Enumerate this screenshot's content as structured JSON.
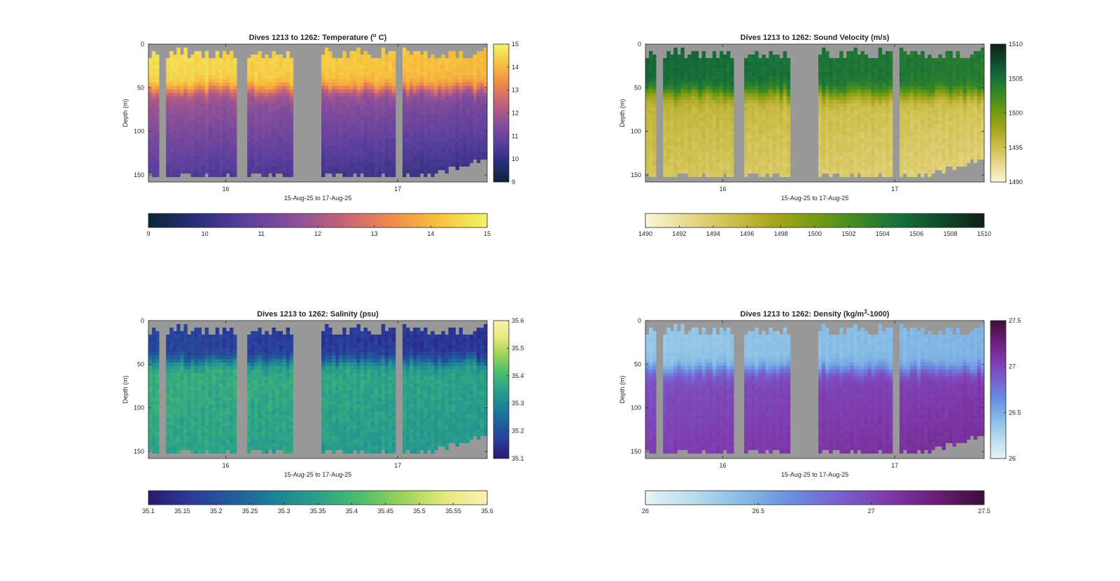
{
  "figure": {
    "background": "#ffffff",
    "nan_color": "#999999"
  },
  "chart_data": [
    {
      "id": "temperature",
      "type": "heatmap",
      "title": "Dives 1213 to 1262: Temperature (°C)",
      "title_prefix": "Dives 1213 to 1262: Temperature (",
      "title_sup": "o",
      "title_suffix": " C)",
      "xlabel": "15-Aug-25 to 17-Aug-25",
      "ylabel": "Depth (m)",
      "xlim": [
        15.55,
        17.52
      ],
      "ylim": [
        0,
        158
      ],
      "y_reversed": true,
      "xticks": [
        16,
        17
      ],
      "xtick_labels": [
        "16",
        "17"
      ],
      "yticks": [
        0,
        50,
        100,
        150
      ],
      "clim": [
        9,
        15
      ],
      "colorbar_ticks": [
        9,
        10,
        11,
        12,
        13,
        14,
        15
      ],
      "colorbar_tick_labels": [
        "9",
        "10",
        "11",
        "12",
        "13",
        "14",
        "15"
      ],
      "horizontal_colorbar_ticks": [
        9,
        10,
        11,
        12,
        13,
        14,
        15
      ],
      "horizontal_colorbar_tick_labels": [
        "9",
        "10",
        "11",
        "12",
        "13",
        "14",
        "15"
      ],
      "colormap": [
        "#0b2537",
        "#2a2e7a",
        "#5a3f9e",
        "#8a4f9a",
        "#c4627a",
        "#f08a4b",
        "#f7c23d",
        "#f1f46a"
      ],
      "profile": {
        "surface": 14.6,
        "mid": 11.8,
        "deep": 10.6,
        "thermocline": 50,
        "width": 12,
        "trend": -0.6
      },
      "noise": 0.25
    },
    {
      "id": "sound_velocity",
      "type": "heatmap",
      "title": "Dives 1213 to 1262: Sound Velocity (m/s)",
      "title_prefix": "Dives 1213 to 1262: Sound Velocity (m/s)",
      "title_sup": "",
      "title_suffix": "",
      "xlabel": "15-Aug-25 to 17-Aug-25",
      "ylabel": "Depth (m)",
      "xlim": [
        15.55,
        17.52
      ],
      "ylim": [
        0,
        158
      ],
      "y_reversed": true,
      "xticks": [
        16,
        17
      ],
      "xtick_labels": [
        "16",
        "17"
      ],
      "yticks": [
        0,
        50,
        100,
        150
      ],
      "clim": [
        1490,
        1510
      ],
      "colorbar_ticks": [
        1490,
        1495,
        1500,
        1505,
        1510
      ],
      "colorbar_tick_labels": [
        "1490",
        "1495",
        "1500",
        "1505",
        "1510"
      ],
      "horizontal_colorbar_ticks": [
        1490,
        1492,
        1494,
        1496,
        1498,
        1500,
        1502,
        1504,
        1506,
        1508,
        1510
      ],
      "horizontal_colorbar_tick_labels": [
        "1490",
        "1492",
        "1494",
        "1496",
        "1498",
        "1500",
        "1502",
        "1504",
        "1506",
        "1508",
        "1510"
      ],
      "colormap": [
        "#fbf7d6",
        "#e8d98d",
        "#cfc04f",
        "#a8a51f",
        "#779c12",
        "#3f8a24",
        "#16703a",
        "#0f4a2a",
        "#101f17"
      ],
      "profile": {
        "surface": 1505.5,
        "mid": 1496,
        "deep": 1494.5,
        "thermocline": 55,
        "width": 12,
        "trend": -1.5
      },
      "noise": 0.9
    },
    {
      "id": "salinity",
      "type": "heatmap",
      "title": "Dives 1213 to 1262: Salinity (psu)",
      "title_prefix": "Dives 1213 to 1262: Salinity (psu)",
      "title_sup": "",
      "title_suffix": "",
      "xlabel": "15-Aug-25 to 17-Aug-25",
      "ylabel": "Depth (m)",
      "xlim": [
        15.55,
        17.52
      ],
      "ylim": [
        0,
        158
      ],
      "y_reversed": true,
      "xticks": [
        16,
        17
      ],
      "xtick_labels": [
        "16",
        "17"
      ],
      "yticks": [
        0,
        50,
        100,
        150
      ],
      "clim": [
        35.1,
        35.6
      ],
      "colorbar_ticks": [
        35.1,
        35.2,
        35.3,
        35.4,
        35.5,
        35.6
      ],
      "colorbar_tick_labels": [
        "35.1",
        "35.2",
        "35.3",
        "35.4",
        "35.5",
        "35.6"
      ],
      "horizontal_colorbar_ticks": [
        35.1,
        35.15,
        35.2,
        35.25,
        35.3,
        35.35,
        35.4,
        35.45,
        35.5,
        35.55,
        35.6
      ],
      "horizontal_colorbar_tick_labels": [
        "35.1",
        "35.15",
        "35.2",
        "35.25",
        "35.3",
        "35.35",
        "35.4",
        "35.45",
        "35.5",
        "35.55",
        "35.6"
      ],
      "colormap": [
        "#2a1a6e",
        "#2b3a9b",
        "#1f5e9a",
        "#1f8197",
        "#2aa08a",
        "#4fbc6e",
        "#9bd35a",
        "#e6e87e",
        "#f8f2b0"
      ],
      "profile": {
        "surface": 35.18,
        "mid": 35.38,
        "deep": 35.36,
        "thermocline": 45,
        "width": 10,
        "trend": -0.03
      },
      "noise": 0.035
    },
    {
      "id": "density",
      "type": "heatmap",
      "title": "Dives 1213 to 1262: Density (kg/m³-1000)",
      "title_prefix": "Dives 1213 to 1262: Density (kg/m",
      "title_sup": "3",
      "title_suffix": "-1000)",
      "xlabel": "15-Aug-25 to 17-Aug-25",
      "ylabel": "Depth (m)",
      "xlim": [
        15.55,
        17.52
      ],
      "ylim": [
        0,
        158
      ],
      "y_reversed": true,
      "xticks": [
        16,
        17
      ],
      "xtick_labels": [
        "16",
        "17"
      ],
      "yticks": [
        0,
        50,
        100,
        150
      ],
      "clim": [
        26,
        27.5
      ],
      "colorbar_ticks": [
        26,
        26.5,
        27,
        27.5
      ],
      "colorbar_tick_labels": [
        "26",
        "26.5",
        "27",
        "27.5"
      ],
      "horizontal_colorbar_ticks": [
        26,
        26.5,
        27,
        27.5
      ],
      "horizontal_colorbar_tick_labels": [
        "26",
        "26.5",
        "27",
        "27.5"
      ],
      "colormap": [
        "#e8f3f6",
        "#b8dcec",
        "#86bde5",
        "#6a8fe0",
        "#7960cf",
        "#7f3aab",
        "#6a1d77",
        "#3a0f38"
      ],
      "profile": {
        "surface": 26.35,
        "mid": 26.95,
        "deep": 27.05,
        "thermocline": 55,
        "width": 12,
        "trend": 0.12
      },
      "noise": 0.05
    }
  ],
  "dives": {
    "gaps": [
      [
        15.62,
        15.66
      ],
      [
        16.06,
        16.13
      ],
      [
        16.4,
        16.55
      ],
      [
        16.98,
        17.02
      ]
    ],
    "start_depth_range": [
      6,
      20
    ],
    "bottom_depth": 152
  }
}
